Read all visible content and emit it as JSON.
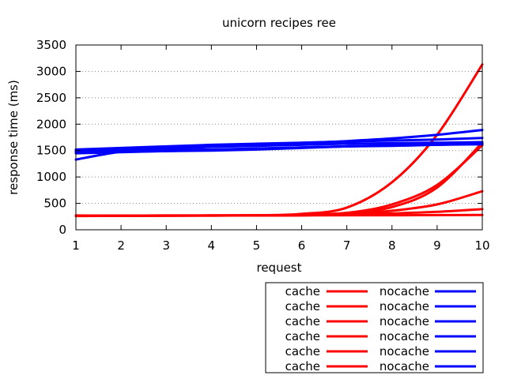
{
  "chart_data": {
    "type": "line",
    "title": "unicorn recipes ree",
    "xlabel": "request",
    "ylabel": "response time (ms)",
    "x": [
      1,
      2,
      3,
      4,
      5,
      6,
      7,
      8,
      9,
      10
    ],
    "xlim": [
      1,
      10
    ],
    "ylim": [
      0,
      3500
    ],
    "xticks": [
      "1",
      "2",
      "3",
      "4",
      "5",
      "6",
      "7",
      "8",
      "9",
      "10"
    ],
    "yticks": [
      0,
      500,
      1000,
      1500,
      2000,
      2500,
      3000,
      3500
    ],
    "ytick_labels": [
      "0",
      "500",
      "1000",
      "1500",
      "2000",
      "2500",
      "3000",
      "3500"
    ],
    "grid": true,
    "legend_position": "bottom-right, outside plot",
    "colors": {
      "cache": "#ff0000",
      "nocache": "#0000ff"
    },
    "series": [
      {
        "name": "cache",
        "color": "#ff0000",
        "values": [
          270,
          265,
          268,
          270,
          275,
          300,
          420,
          900,
          1800,
          3130
        ]
      },
      {
        "name": "cache",
        "color": "#ff0000",
        "values": [
          260,
          262,
          265,
          268,
          272,
          280,
          320,
          480,
          850,
          1600
        ]
      },
      {
        "name": "cache",
        "color": "#ff0000",
        "values": [
          265,
          267,
          268,
          270,
          272,
          280,
          320,
          430,
          800,
          1650
        ]
      },
      {
        "name": "cache",
        "color": "#ff0000",
        "values": [
          268,
          268,
          270,
          270,
          272,
          275,
          300,
          360,
          480,
          730
        ]
      },
      {
        "name": "cache",
        "color": "#ff0000",
        "values": [
          265,
          266,
          268,
          268,
          270,
          272,
          290,
          310,
          340,
          390
        ]
      },
      {
        "name": "cache",
        "color": "#ff0000",
        "values": [
          268,
          268,
          270,
          270,
          270,
          272,
          275,
          275,
          278,
          280
        ]
      },
      {
        "name": "nocache",
        "color": "#0000ff",
        "values": [
          1330,
          1480,
          1540,
          1575,
          1610,
          1640,
          1680,
          1730,
          1800,
          1890
        ]
      },
      {
        "name": "nocache",
        "color": "#0000ff",
        "values": [
          1520,
          1550,
          1580,
          1610,
          1630,
          1650,
          1670,
          1690,
          1710,
          1740
        ]
      },
      {
        "name": "nocache",
        "color": "#0000ff",
        "values": [
          1480,
          1510,
          1540,
          1570,
          1590,
          1610,
          1630,
          1640,
          1650,
          1660
        ]
      },
      {
        "name": "nocache",
        "color": "#0000ff",
        "values": [
          1450,
          1470,
          1490,
          1510,
          1530,
          1560,
          1580,
          1600,
          1620,
          1640
        ]
      },
      {
        "name": "nocache",
        "color": "#0000ff",
        "values": [
          1470,
          1480,
          1490,
          1500,
          1520,
          1550,
          1580,
          1600,
          1610,
          1620
        ]
      },
      {
        "name": "nocache",
        "color": "#0000ff",
        "values": [
          1500,
          1500,
          1510,
          1520,
          1540,
          1560,
          1580,
          1590,
          1610,
          1630
        ]
      }
    ],
    "legend": {
      "cache_label": "cache",
      "nocache_label": "nocache",
      "rows": [
        {
          "left": "cache",
          "right": "nocache"
        },
        {
          "left": "cache",
          "right": "nocache"
        },
        {
          "left": "cache",
          "right": "nocache"
        },
        {
          "left": "cache",
          "right": "nocache"
        },
        {
          "left": "cache",
          "right": "nocache"
        },
        {
          "left": "cache",
          "right": "nocache"
        }
      ]
    }
  }
}
